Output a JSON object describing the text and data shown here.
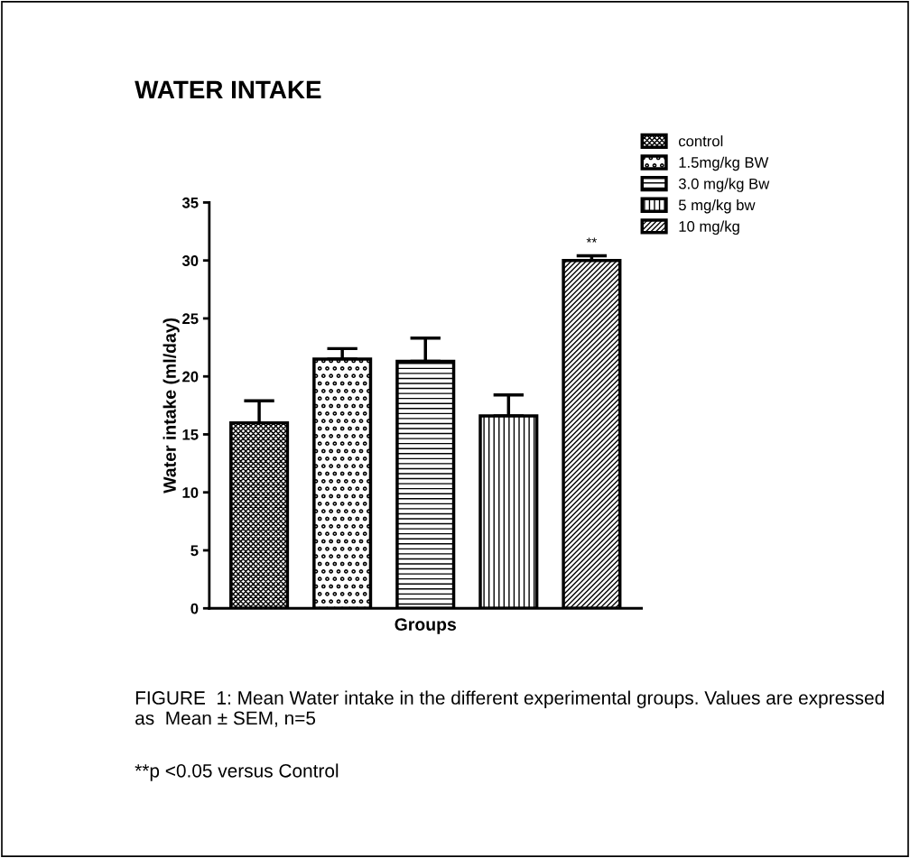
{
  "chart_data": {
    "type": "bar",
    "title": "WATER INTAKE",
    "xlabel": "Groups",
    "ylabel": "Water intake (ml/day)",
    "categories": [
      null,
      null,
      null,
      null,
      null
    ],
    "series": [
      {
        "name": "control",
        "color": "#000000",
        "values": [
          16.0,
          null,
          null,
          null,
          null
        ],
        "errors": [
          1.9,
          null,
          null,
          null,
          null
        ]
      },
      {
        "name": "1.5mg/kg BW",
        "color": "#000000",
        "values": [
          null,
          21.5,
          null,
          null,
          null
        ],
        "errors": [
          null,
          0.9,
          null,
          null,
          null
        ]
      },
      {
        "name": "3.0 mg/kg Bw",
        "color": "#000000",
        "values": [
          null,
          null,
          21.3,
          null,
          null
        ],
        "errors": [
          null,
          null,
          2.0,
          null,
          null
        ]
      },
      {
        "name": "5 mg/kg bw",
        "color": "#000000",
        "values": [
          null,
          null,
          null,
          16.6,
          null
        ],
        "errors": [
          null,
          null,
          null,
          1.8,
          null
        ]
      },
      {
        "name": "10 mg/kg",
        "color": "#000000",
        "values": [
          null,
          null,
          null,
          null,
          30.0
        ],
        "errors": [
          null,
          null,
          null,
          null,
          0.4
        ]
      }
    ],
    "ylim": [
      0,
      35
    ],
    "yticks": [
      0,
      5,
      10,
      15,
      20,
      25,
      30,
      35
    ],
    "grid": false,
    "legend": "top right",
    "annotations": [
      {
        "text": "**",
        "y": 30.9
      },
      "FIGURE  1: Mean Water intake in the different experimental groups. Values are expressed as  Mean ± SEM, n=5",
      "**p <0.05 versus Control"
    ]
  }
}
